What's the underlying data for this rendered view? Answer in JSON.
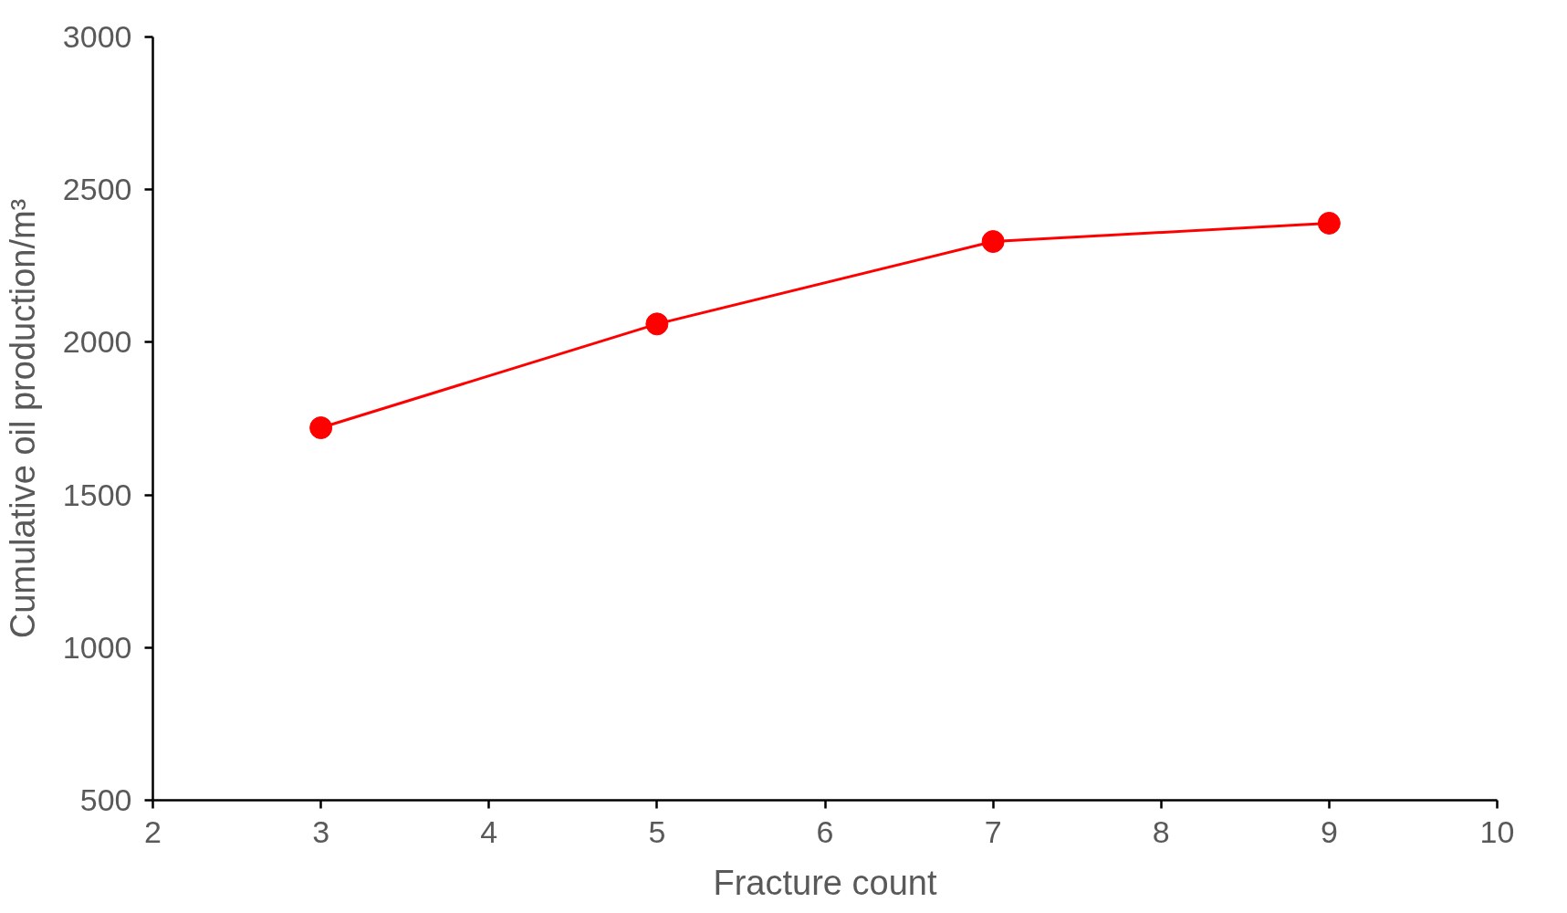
{
  "chart_data": {
    "type": "line",
    "xlabel": "Fracture count",
    "ylabel": "Cumulative oil production/m³",
    "x": [
      3,
      5,
      7,
      9
    ],
    "series": [
      {
        "color": "#ff0000",
        "values": [
          1720,
          2060,
          2330,
          2390
        ]
      }
    ],
    "xlim": [
      2,
      10
    ],
    "xticks": [
      2,
      3,
      4,
      5,
      6,
      7,
      8,
      9,
      10
    ],
    "ylim": [
      500,
      3000
    ],
    "yticks": [
      500,
      1000,
      1500,
      2000,
      2500,
      3000
    ],
    "grid": false,
    "marker": "circle",
    "line_style": "solid"
  }
}
